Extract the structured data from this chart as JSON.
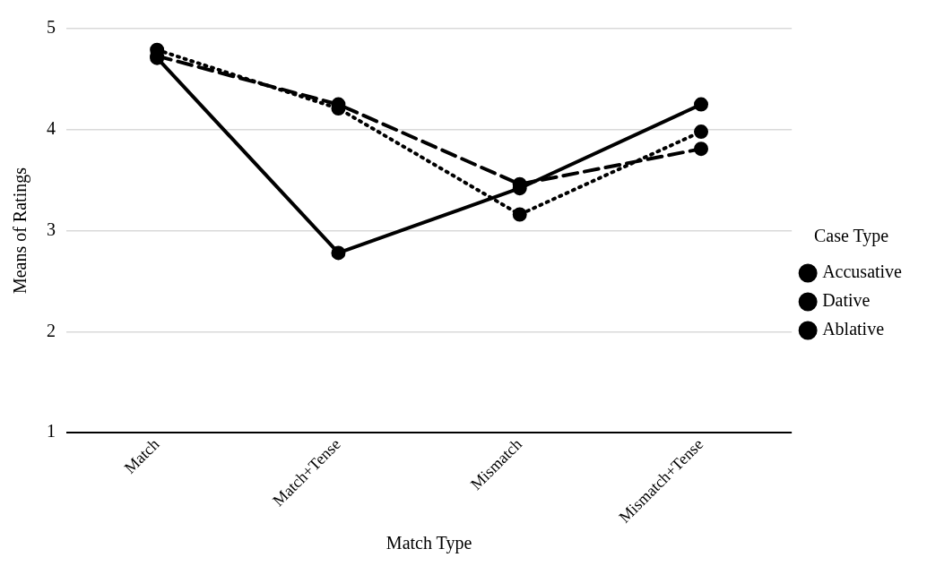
{
  "chart_data": {
    "type": "line",
    "xlabel": "Match Type",
    "ylabel": "Means of Ratings",
    "legend_title": "Case Type",
    "legend": "right",
    "marker": "circle",
    "grid": "y",
    "categories": [
      "Match",
      "Match+Tense",
      "Mismatch",
      "Mismatch+Tense"
    ],
    "ylim": [
      1,
      5
    ],
    "yticks": [
      1,
      2,
      3,
      4,
      5
    ],
    "series": [
      {
        "name": "Accusative",
        "color": "#000000",
        "line_style": "solid",
        "values": [
          4.71,
          2.78,
          3.42,
          4.25
        ]
      },
      {
        "name": "Dative",
        "color": "#000000",
        "line_style": "dotted",
        "values": [
          4.79,
          4.21,
          3.16,
          3.98
        ]
      },
      {
        "name": "Ablative",
        "color": "#000000",
        "line_style": "dashed",
        "values": [
          4.73,
          4.25,
          3.46,
          3.81
        ]
      }
    ]
  }
}
